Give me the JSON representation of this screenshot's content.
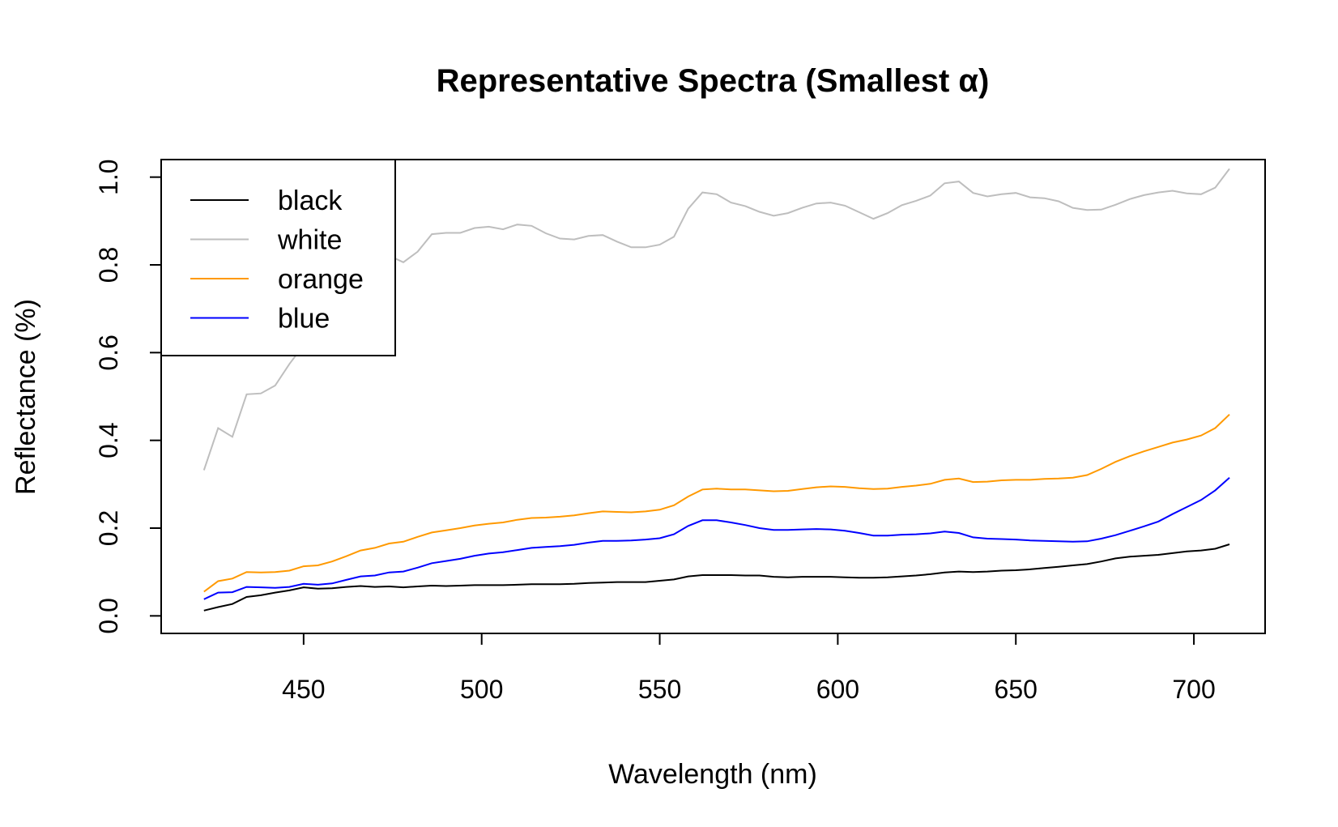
{
  "chart_data": {
    "type": "line",
    "title": "Representative Spectra (Smallest α)",
    "xlabel": "Wavelength (nm)",
    "ylabel": "Reflectance (%)",
    "xlim": [
      410,
      720
    ],
    "ylim": [
      -0.04,
      1.04
    ],
    "xticks": [
      450,
      500,
      550,
      600,
      650,
      700
    ],
    "yticks": [
      0.0,
      0.2,
      0.4,
      0.6,
      0.8,
      1.0
    ],
    "ytick_labels": [
      "0.0",
      "0.2",
      "0.4",
      "0.6",
      "0.8",
      "1.0"
    ],
    "grid": false,
    "legend_position": "top-left",
    "x": [
      422,
      426,
      430,
      434,
      438,
      442,
      446,
      450,
      454,
      458,
      462,
      466,
      470,
      474,
      478,
      482,
      486,
      490,
      494,
      498,
      502,
      506,
      510,
      514,
      518,
      522,
      526,
      530,
      534,
      538,
      542,
      546,
      550,
      554,
      558,
      562,
      566,
      570,
      574,
      578,
      582,
      586,
      590,
      594,
      598,
      602,
      606,
      610,
      614,
      618,
      622,
      626,
      630,
      634,
      638,
      642,
      646,
      650,
      654,
      658,
      662,
      666,
      670,
      674,
      678,
      682,
      686,
      690,
      694,
      698,
      702,
      706,
      710
    ],
    "series": [
      {
        "name": "black",
        "color": "#000000",
        "values": [
          0.012,
          0.02,
          0.027,
          0.043,
          0.047,
          0.053,
          0.058,
          0.065,
          0.062,
          0.063,
          0.066,
          0.068,
          0.066,
          0.067,
          0.065,
          0.067,
          0.069,
          0.068,
          0.069,
          0.07,
          0.07,
          0.07,
          0.071,
          0.072,
          0.072,
          0.072,
          0.073,
          0.075,
          0.076,
          0.077,
          0.077,
          0.077,
          0.08,
          0.083,
          0.09,
          0.093,
          0.093,
          0.093,
          0.092,
          0.092,
          0.089,
          0.088,
          0.089,
          0.089,
          0.089,
          0.088,
          0.087,
          0.087,
          0.088,
          0.09,
          0.092,
          0.095,
          0.099,
          0.101,
          0.1,
          0.101,
          0.103,
          0.104,
          0.106,
          0.109,
          0.112,
          0.115,
          0.118,
          0.124,
          0.131,
          0.135,
          0.137,
          0.139,
          0.143,
          0.147,
          0.149,
          0.153,
          0.163
        ]
      },
      {
        "name": "white",
        "color": "#bebebe",
        "values": [
          0.332,
          0.428,
          0.408,
          0.505,
          0.507,
          0.525,
          0.574,
          0.617,
          0.664,
          0.701,
          0.744,
          0.786,
          0.811,
          0.821,
          0.806,
          0.83,
          0.87,
          0.873,
          0.873,
          0.884,
          0.887,
          0.881,
          0.892,
          0.889,
          0.872,
          0.86,
          0.858,
          0.866,
          0.868,
          0.853,
          0.84,
          0.84,
          0.846,
          0.864,
          0.928,
          0.965,
          0.961,
          0.942,
          0.934,
          0.921,
          0.912,
          0.918,
          0.93,
          0.94,
          0.942,
          0.935,
          0.92,
          0.905,
          0.918,
          0.936,
          0.946,
          0.958,
          0.986,
          0.99,
          0.964,
          0.956,
          0.961,
          0.964,
          0.954,
          0.952,
          0.945,
          0.93,
          0.925,
          0.926,
          0.937,
          0.95,
          0.959,
          0.965,
          0.969,
          0.963,
          0.961,
          0.976,
          1.019
        ]
      },
      {
        "name": "orange",
        "color": "#ff9900",
        "values": [
          0.055,
          0.079,
          0.085,
          0.1,
          0.099,
          0.1,
          0.103,
          0.113,
          0.115,
          0.124,
          0.136,
          0.149,
          0.155,
          0.165,
          0.169,
          0.18,
          0.19,
          0.195,
          0.2,
          0.206,
          0.21,
          0.213,
          0.219,
          0.223,
          0.224,
          0.226,
          0.229,
          0.234,
          0.238,
          0.237,
          0.236,
          0.238,
          0.242,
          0.252,
          0.272,
          0.288,
          0.29,
          0.288,
          0.288,
          0.286,
          0.284,
          0.285,
          0.289,
          0.293,
          0.295,
          0.294,
          0.291,
          0.289,
          0.29,
          0.294,
          0.297,
          0.301,
          0.31,
          0.313,
          0.305,
          0.306,
          0.309,
          0.31,
          0.31,
          0.312,
          0.313,
          0.315,
          0.321,
          0.335,
          0.351,
          0.364,
          0.375,
          0.385,
          0.395,
          0.402,
          0.411,
          0.428,
          0.459
        ]
      },
      {
        "name": "blue",
        "color": "#0000ff",
        "values": [
          0.038,
          0.053,
          0.054,
          0.066,
          0.065,
          0.064,
          0.066,
          0.073,
          0.071,
          0.074,
          0.082,
          0.09,
          0.092,
          0.099,
          0.101,
          0.11,
          0.12,
          0.125,
          0.13,
          0.137,
          0.142,
          0.145,
          0.15,
          0.155,
          0.157,
          0.159,
          0.162,
          0.167,
          0.171,
          0.171,
          0.172,
          0.174,
          0.177,
          0.186,
          0.205,
          0.218,
          0.218,
          0.213,
          0.207,
          0.2,
          0.196,
          0.196,
          0.197,
          0.198,
          0.197,
          0.194,
          0.189,
          0.183,
          0.183,
          0.185,
          0.186,
          0.188,
          0.192,
          0.189,
          0.179,
          0.176,
          0.175,
          0.174,
          0.172,
          0.171,
          0.17,
          0.169,
          0.17,
          0.176,
          0.184,
          0.194,
          0.204,
          0.215,
          0.232,
          0.248,
          0.264,
          0.286,
          0.315
        ]
      }
    ]
  }
}
